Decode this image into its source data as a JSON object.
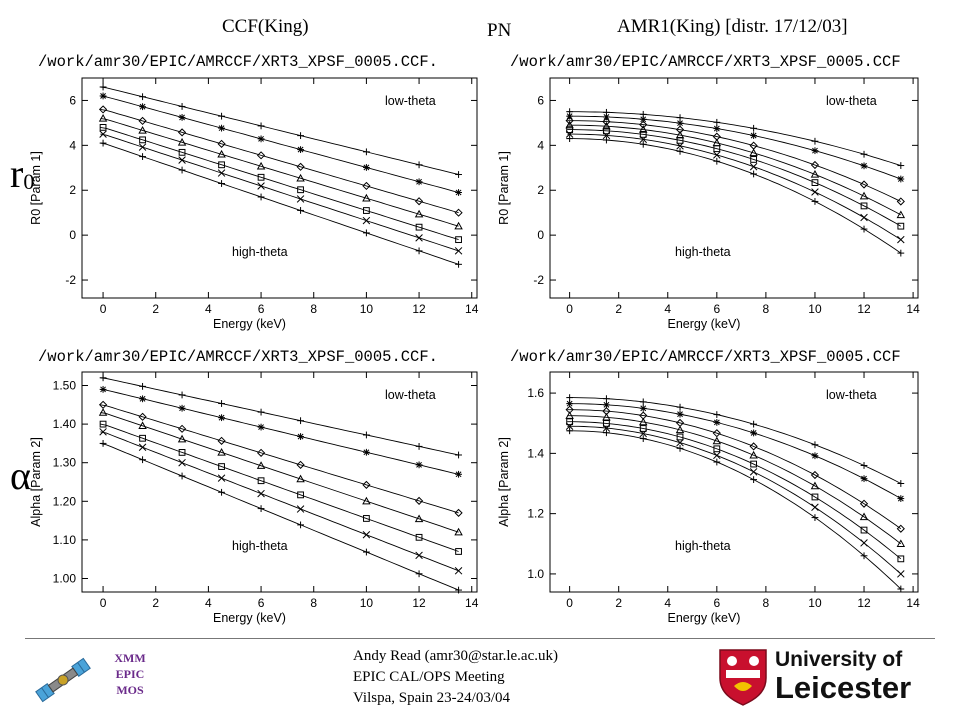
{
  "header": {
    "left": "CCF(King)",
    "center": "PN",
    "right": "AMR1(King) [distr. 17/12/03]"
  },
  "side_labels": {
    "top": "r",
    "top_sub": "0",
    "bottom": "α"
  },
  "footer": {
    "author": "Andy Read (amr30@star.le.ac.uk)",
    "meeting": "EPIC CAL/OPS Meeting",
    "place": "Vilspa, Spain 23-24/03/04",
    "xmm_lines": [
      "XMM",
      "EPIC",
      "MOS"
    ],
    "uni_line1": "University of",
    "uni_line2": "Leicester"
  },
  "colors": {
    "ink": "#000000",
    "rule": "#777777",
    "xmm_text": "#6a2a8a",
    "shield_red": "#c8102e"
  },
  "icons": [
    "satellite-logo-icon",
    "university-shield-icon"
  ],
  "chart_data": [
    {
      "type": "line",
      "path_label": "/work/amr30/EPIC/AMRCCF/XRT3_XPSF_0005.CCF.",
      "xlabel": "Energy (keV)",
      "ylabel": "R0 [Param 1]",
      "xlim": [
        -0.8,
        14.2
      ],
      "ylim": [
        -2.8,
        7.0
      ],
      "xticks": [
        0,
        2,
        4,
        6,
        8,
        10,
        12,
        14
      ],
      "yticks": [
        -2,
        0,
        2,
        4,
        6
      ],
      "annotations": [
        "low-theta",
        "high-theta"
      ],
      "x": [
        0,
        1.5,
        3,
        4.5,
        6,
        7.5,
        10,
        12,
        13.5
      ],
      "model": "linear",
      "series": [
        {
          "marker": "plus",
          "y0": 6.6,
          "y1": 2.7
        },
        {
          "marker": "asterisk",
          "y0": 6.2,
          "y1": 1.9
        },
        {
          "marker": "diamond",
          "y0": 5.6,
          "y1": 1.0
        },
        {
          "marker": "triangle",
          "y0": 5.2,
          "y1": 0.4
        },
        {
          "marker": "square",
          "y0": 4.8,
          "y1": -0.2
        },
        {
          "marker": "cross",
          "y0": 4.5,
          "y1": -0.7
        },
        {
          "marker": "plus",
          "y0": 4.1,
          "y1": -1.3
        }
      ]
    },
    {
      "type": "line",
      "path_label": "/work/amr30/EPIC/AMRCCF/XRT3_XPSF_0005.CCF",
      "xlabel": "Energy (keV)",
      "ylabel": "R0 [Param 1]",
      "xlim": [
        -0.8,
        14.2
      ],
      "ylim": [
        -2.8,
        7.0
      ],
      "xticks": [
        0,
        2,
        4,
        6,
        8,
        10,
        12,
        14
      ],
      "yticks": [
        -2,
        0,
        2,
        4,
        6
      ],
      "annotations": [
        "low-theta",
        "high-theta"
      ],
      "x": [
        0,
        1.5,
        3,
        4.5,
        6,
        7.5,
        10,
        12,
        13.5
      ],
      "model": "curved",
      "series": [
        {
          "marker": "plus",
          "y0": 5.5,
          "y1": 3.1
        },
        {
          "marker": "asterisk",
          "y0": 5.3,
          "y1": 2.5
        },
        {
          "marker": "diamond",
          "y0": 5.1,
          "y1": 1.5
        },
        {
          "marker": "triangle",
          "y0": 4.9,
          "y1": 0.9
        },
        {
          "marker": "square",
          "y0": 4.7,
          "y1": 0.4
        },
        {
          "marker": "cross",
          "y0": 4.5,
          "y1": -0.2
        },
        {
          "marker": "plus",
          "y0": 4.3,
          "y1": -0.8
        }
      ]
    },
    {
      "type": "line",
      "path_label": "/work/amr30/EPIC/AMRCCF/XRT3_XPSF_0005.CCF.",
      "xlabel": "Energy (keV)",
      "ylabel": "Alpha [Param 2]",
      "xlim": [
        -0.8,
        14.2
      ],
      "ylim": [
        0.965,
        1.535
      ],
      "xticks": [
        0,
        2,
        4,
        6,
        8,
        10,
        12,
        14
      ],
      "yticks": [
        1.0,
        1.1,
        1.2,
        1.3,
        1.4,
        1.5
      ],
      "ytick_decimals": 2,
      "annotations": [
        "low-theta",
        "high-theta"
      ],
      "x": [
        0,
        1.5,
        3,
        4.5,
        6,
        7.5,
        10,
        12,
        13.5
      ],
      "model": "linear",
      "series": [
        {
          "marker": "plus",
          "y0": 1.52,
          "y1": 1.32
        },
        {
          "marker": "asterisk",
          "y0": 1.49,
          "y1": 1.27
        },
        {
          "marker": "diamond",
          "y0": 1.45,
          "y1": 1.17
        },
        {
          "marker": "triangle",
          "y0": 1.43,
          "y1": 1.12
        },
        {
          "marker": "square",
          "y0": 1.4,
          "y1": 1.07
        },
        {
          "marker": "cross",
          "y0": 1.38,
          "y1": 1.02
        },
        {
          "marker": "plus",
          "y0": 1.35,
          "y1": 0.97
        }
      ]
    },
    {
      "type": "line",
      "path_label": "/work/amr30/EPIC/AMRCCF/XRT3_XPSF_0005.CCF",
      "xlabel": "Energy (keV)",
      "ylabel": "Alpha [Param 2]",
      "xlim": [
        -0.8,
        14.2
      ],
      "ylim": [
        0.94,
        1.67
      ],
      "xticks": [
        0,
        2,
        4,
        6,
        8,
        10,
        12,
        14
      ],
      "yticks": [
        1.0,
        1.2,
        1.4,
        1.6
      ],
      "ytick_decimals": 1,
      "annotations": [
        "low-theta",
        "high-theta"
      ],
      "x": [
        0,
        1.5,
        3,
        4.5,
        6,
        7.5,
        10,
        12,
        13.5
      ],
      "model": "curved",
      "series": [
        {
          "marker": "plus",
          "y0": 1.585,
          "y1": 1.3
        },
        {
          "marker": "asterisk",
          "y0": 1.565,
          "y1": 1.25
        },
        {
          "marker": "diamond",
          "y0": 1.545,
          "y1": 1.15
        },
        {
          "marker": "triangle",
          "y0": 1.525,
          "y1": 1.1
        },
        {
          "marker": "square",
          "y0": 1.505,
          "y1": 1.05
        },
        {
          "marker": "cross",
          "y0": 1.49,
          "y1": 1.0
        },
        {
          "marker": "plus",
          "y0": 1.475,
          "y1": 0.95
        }
      ]
    }
  ]
}
